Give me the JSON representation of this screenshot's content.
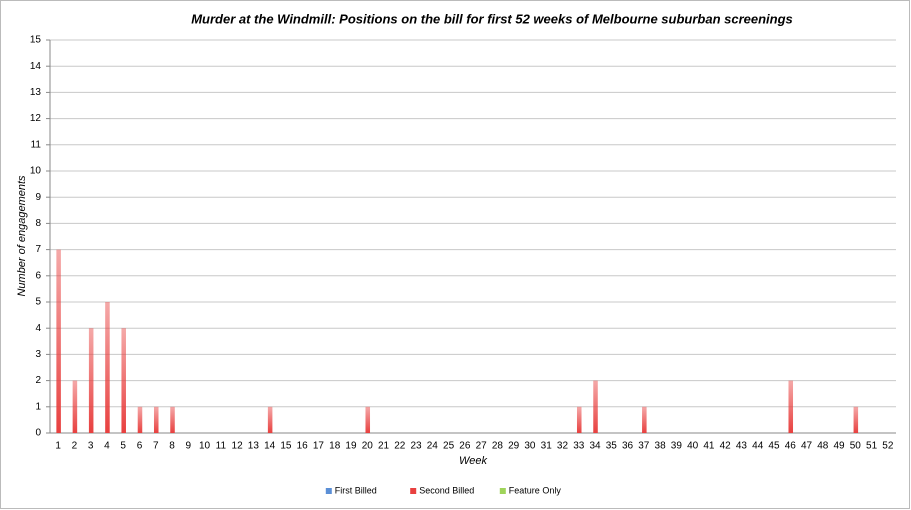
{
  "chart_data": {
    "type": "bar",
    "title": "Murder at the Windmill: Positions on the bill for first 52 weeks of Melbourne suburban screenings",
    "x_label": "Week",
    "y_label": "Number of engagements",
    "categories": [
      "1",
      "2",
      "3",
      "4",
      "5",
      "6",
      "7",
      "8",
      "9",
      "10",
      "11",
      "12",
      "13",
      "14",
      "15",
      "16",
      "17",
      "18",
      "19",
      "20",
      "21",
      "22",
      "23",
      "24",
      "25",
      "26",
      "27",
      "28",
      "29",
      "30",
      "31",
      "32",
      "33",
      "34",
      "35",
      "36",
      "37",
      "38",
      "39",
      "40",
      "41",
      "42",
      "43",
      "44",
      "45",
      "46",
      "47",
      "48",
      "49",
      "50",
      "51",
      "52"
    ],
    "series": [
      {
        "name": "First Billed",
        "color": "#5b8fd6",
        "values": [
          0,
          0,
          0,
          0,
          0,
          0,
          0,
          0,
          0,
          0,
          0,
          0,
          0,
          0,
          0,
          0,
          0,
          0,
          0,
          0,
          0,
          0,
          0,
          0,
          0,
          0,
          0,
          0,
          0,
          0,
          0,
          0,
          0,
          0,
          0,
          0,
          0,
          0,
          0,
          0,
          0,
          0,
          0,
          0,
          0,
          0,
          0,
          0,
          0,
          0,
          0,
          0
        ]
      },
      {
        "name": "Second Billed",
        "color": "#e8403f",
        "values": [
          7,
          2,
          4,
          5,
          4,
          1,
          1,
          1,
          0,
          0,
          0,
          0,
          0,
          1,
          0,
          0,
          0,
          0,
          0,
          1,
          0,
          0,
          0,
          0,
          0,
          0,
          0,
          0,
          0,
          0,
          0,
          0,
          1,
          2,
          0,
          0,
          1,
          0,
          0,
          0,
          0,
          0,
          0,
          0,
          0,
          2,
          0,
          0,
          0,
          1,
          0,
          0
        ]
      },
      {
        "name": "Feature Only",
        "color": "#9fd45a",
        "values": [
          0,
          0,
          0,
          0,
          0,
          0,
          0,
          0,
          0,
          0,
          0,
          0,
          0,
          0,
          0,
          0,
          0,
          0,
          0,
          0,
          0,
          0,
          0,
          0,
          0,
          0,
          0,
          0,
          0,
          0,
          0,
          0,
          0,
          0,
          0,
          0,
          0,
          0,
          0,
          0,
          0,
          0,
          0,
          0,
          0,
          0,
          0,
          0,
          0,
          0,
          0,
          0
        ]
      }
    ],
    "ylim": [
      0,
      15
    ],
    "yticks": [
      0,
      1,
      2,
      3,
      4,
      5,
      6,
      7,
      8,
      9,
      10,
      11,
      12,
      13,
      14,
      15
    ],
    "grid": true,
    "legend": "bottom"
  }
}
